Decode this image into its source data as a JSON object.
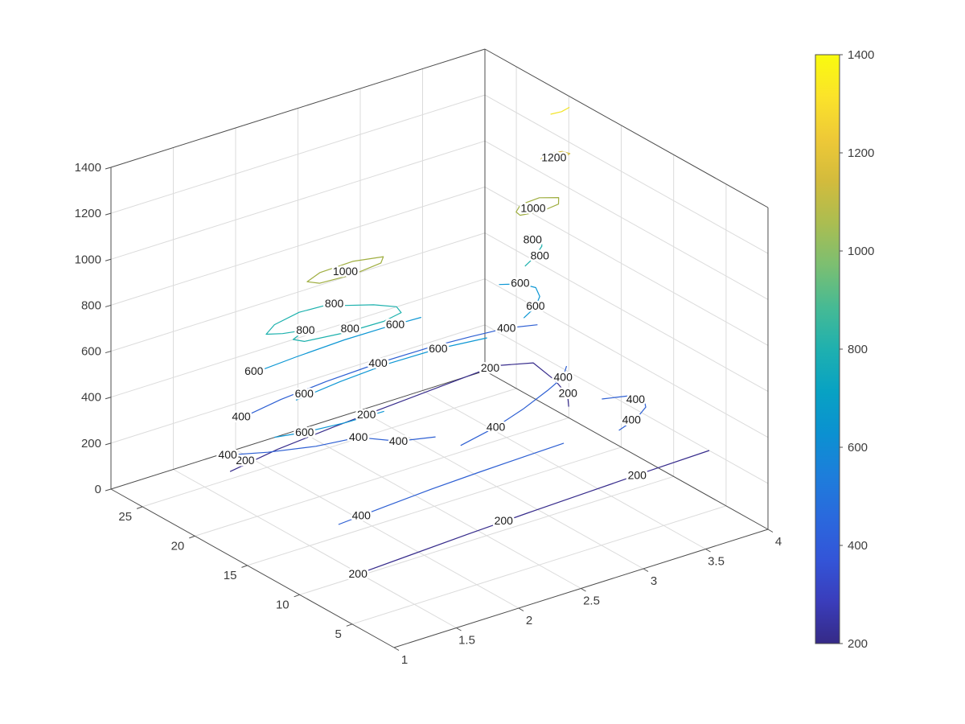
{
  "window": {
    "background": "#ffffff"
  },
  "chart_data": {
    "type": "contour3",
    "title": "",
    "view": "3d-default",
    "xlim": [
      1,
      4
    ],
    "ylim": [
      1,
      28
    ],
    "zlim": [
      0,
      1400
    ],
    "x_ticks": [
      1,
      1.5,
      2,
      2.5,
      3,
      3.5,
      4
    ],
    "y_ticks": [
      5,
      10,
      15,
      20,
      25
    ],
    "z_ticks": [
      0,
      200,
      400,
      600,
      800,
      1000,
      1200,
      1400
    ],
    "levels": [
      200,
      400,
      600,
      800,
      1000,
      1200,
      1400
    ],
    "grid": true,
    "colors": {
      "grid": "#dbdbdb",
      "axis": "#4d4d4d",
      "tick_text": "#3d3d3d",
      "contour_label_text": "#1b1b1b"
    },
    "contours": [
      {
        "level": 200,
        "color": "#372c8c",
        "closed": false,
        "points": [
          [
            1.0,
            5.2
          ],
          [
            1.5,
            5.5
          ],
          [
            2.0,
            5.8
          ],
          [
            2.5,
            6.05
          ],
          [
            3.0,
            6.25
          ],
          [
            3.5,
            6.45
          ],
          [
            4.0,
            6.6
          ]
        ],
        "labels": [
          [
            1.07,
            5.27
          ],
          [
            2.3,
            6.0
          ],
          [
            3.4,
            6.35
          ]
        ]
      },
      {
        "level": 200,
        "color": "#372c8c",
        "closed": false,
        "points": [
          [
            1.35,
            20.8
          ],
          [
            1.8,
            21.6
          ],
          [
            2.3,
            22.1
          ],
          [
            2.8,
            22.5
          ],
          [
            3.3,
            22.9
          ],
          [
            3.68,
            23.2
          ],
          [
            3.9,
            22.2
          ],
          [
            3.85,
            19.5
          ],
          [
            3.78,
            17.5
          ],
          [
            3.68,
            16.2
          ]
        ],
        "labels": [
          [
            1.53,
            21.5
          ],
          [
            2.57,
            22.3
          ],
          [
            3.63,
            23.1
          ],
          [
            3.8,
            17.7
          ]
        ]
      },
      {
        "level": 400,
        "color": "#2d5fd3",
        "closed": false,
        "points": [
          [
            1.0,
            6.3
          ],
          [
            1.4,
            6.65
          ],
          [
            1.8,
            6.95
          ],
          [
            2.2,
            7.15
          ],
          [
            2.6,
            7.3
          ],
          [
            2.9,
            7.4
          ]
        ],
        "labels": [
          [
            1.2,
            6.5
          ]
        ]
      },
      {
        "level": 400,
        "color": "#2d5fd3",
        "closed": false,
        "points": [
          [
            3.3,
            6.9
          ],
          [
            3.5,
            7.6
          ],
          [
            3.65,
            8.5
          ],
          [
            3.72,
            9.5
          ],
          [
            3.67,
            10.3
          ],
          [
            3.5,
            10.9
          ]
        ],
        "labels": [
          [
            3.46,
            7.6
          ],
          [
            3.67,
            9.7
          ]
        ]
      },
      {
        "level": 400,
        "color": "#2d5fd3",
        "closed": false,
        "points": [
          [
            2.35,
            10.7
          ],
          [
            2.7,
            11.5
          ],
          [
            3.0,
            12.5
          ],
          [
            3.3,
            13.7
          ],
          [
            3.5,
            14.6
          ],
          [
            3.62,
            15.7
          ]
        ],
        "labels": [
          [
            2.7,
            11.5
          ],
          [
            3.5,
            14.6
          ]
        ]
      },
      {
        "level": 400,
        "color": "#2d5fd3",
        "closed": false,
        "points": [
          [
            1.02,
            17.9
          ],
          [
            1.3,
            16.6
          ],
          [
            1.6,
            15.6
          ],
          [
            1.9,
            15.1
          ],
          [
            2.07,
            13.3
          ],
          [
            2.3,
            12.5
          ]
        ],
        "labels": [
          [
            1.07,
            17.7
          ],
          [
            1.9,
            15.1
          ],
          [
            2.07,
            13.3
          ]
        ]
      },
      {
        "level": 400,
        "color": "#2d5fd3",
        "closed": false,
        "points": [
          [
            1.45,
            21.2
          ],
          [
            1.85,
            21.9
          ],
          [
            2.25,
            22.3
          ],
          [
            2.68,
            22.5
          ],
          [
            3.1,
            22.45
          ],
          [
            3.4,
            22.2
          ],
          [
            3.66,
            21.9
          ],
          [
            3.85,
            21.2
          ]
        ],
        "labels": [
          [
            1.49,
            21.4
          ],
          [
            2.68,
            22.5
          ],
          [
            3.66,
            21.9
          ]
        ]
      },
      {
        "level": 600,
        "color": "#0d97d4",
        "closed": false,
        "points": [
          [
            1.5,
            20.7
          ],
          [
            1.9,
            21.0
          ],
          [
            2.3,
            21.2
          ],
          [
            2.65,
            21.15
          ],
          [
            2.9,
            21.0
          ]
        ],
        "labels": [
          [
            1.55,
            20.9
          ],
          [
            2.7,
            21.1
          ]
        ]
      },
      {
        "level": 600,
        "color": "#0d97d4",
        "closed": false,
        "points": [
          [
            1.5,
            16.3
          ],
          [
            1.9,
            16.8
          ],
          [
            2.3,
            17.1
          ],
          [
            2.7,
            17.0
          ],
          [
            3.05,
            16.5
          ]
        ],
        "labels": [
          [
            1.6,
            16.7
          ],
          [
            2.7,
            17.0
          ]
        ]
      },
      {
        "level": 600,
        "color": "#0d97d4",
        "closed": false,
        "points": [
          [
            1.05,
            13.0
          ],
          [
            1.25,
            12.5
          ],
          [
            1.55,
            12.15
          ],
          [
            1.85,
            12.05
          ]
        ],
        "labels": [
          [
            1.25,
            12.5
          ]
        ]
      },
      {
        "level": 600,
        "color": "#0d97d4",
        "closed": false,
        "points": [
          [
            3.42,
            17.4
          ],
          [
            3.58,
            18.2
          ],
          [
            3.7,
            19.2
          ],
          [
            3.76,
            20.3
          ],
          [
            3.72,
            21.2
          ],
          [
            3.6,
            21.9
          ]
        ],
        "labels": [
          [
            3.59,
            18.3
          ],
          [
            3.72,
            21.3
          ]
        ]
      },
      {
        "level": 800,
        "color": "#1cb1ad",
        "closed": true,
        "points": [
          [
            1.77,
            18.6
          ],
          [
            1.62,
            18.0
          ],
          [
            1.66,
            17.4
          ],
          [
            1.95,
            16.95
          ],
          [
            2.25,
            16.85
          ],
          [
            2.42,
            17.2
          ],
          [
            2.45,
            18.0
          ],
          [
            2.35,
            19.0
          ],
          [
            2.2,
            19.9
          ],
          [
            2.16,
            20.55
          ],
          [
            1.9,
            20.75
          ],
          [
            1.66,
            20.25
          ],
          [
            1.53,
            19.5
          ],
          [
            1.62,
            19.0
          ]
        ],
        "labels": [
          [
            2.16,
            20.5
          ],
          [
            1.77,
            18.6
          ],
          [
            2.01,
            17.2
          ]
        ]
      },
      {
        "level": 800,
        "color": "#1cb1ad",
        "closed": false,
        "points": [
          [
            3.48,
            18.0
          ],
          [
            3.62,
            18.7
          ],
          [
            3.75,
            19.6
          ],
          [
            3.83,
            20.6
          ],
          [
            3.78,
            21.4
          ]
        ],
        "labels": [
          [
            3.65,
            18.6
          ],
          [
            3.76,
            20.6
          ]
        ]
      },
      {
        "level": 1000,
        "color": "#9fae40",
        "closed": true,
        "points": [
          [
            1.85,
            18.2
          ],
          [
            2.1,
            18.0
          ],
          [
            2.35,
            18.3
          ],
          [
            2.42,
            18.9
          ],
          [
            2.22,
            19.45
          ],
          [
            1.95,
            19.35
          ],
          [
            1.8,
            18.8
          ]
        ],
        "labels": [
          [
            2.09,
            18.6
          ]
        ]
      },
      {
        "level": 1000,
        "color": "#9fae40",
        "closed": true,
        "points": [
          [
            3.5,
            18.7
          ],
          [
            3.65,
            18.4
          ],
          [
            3.8,
            18.6
          ],
          [
            3.86,
            19.3
          ],
          [
            3.76,
            19.95
          ],
          [
            3.6,
            19.85
          ],
          [
            3.51,
            19.2
          ]
        ],
        "labels": [
          [
            3.63,
            19.0
          ]
        ]
      },
      {
        "level": 1200,
        "color": "#d0ba3c",
        "closed": true,
        "points": [
          [
            3.7,
            18.6
          ],
          [
            3.8,
            18.4
          ],
          [
            3.9,
            18.7
          ],
          [
            3.88,
            19.2
          ],
          [
            3.78,
            19.45
          ],
          [
            3.7,
            19.1
          ]
        ],
        "labels": [
          [
            3.78,
            18.8
          ]
        ]
      },
      {
        "level": 1400,
        "color": "#f2e426",
        "closed": false,
        "points": [
          [
            3.74,
            18.65
          ],
          [
            3.82,
            18.55
          ],
          [
            3.9,
            18.75
          ]
        ],
        "labels": []
      }
    ],
    "colorbar": {
      "min": 200,
      "max": 1400,
      "ticks": [
        200,
        400,
        600,
        800,
        1000,
        1200,
        1400
      ],
      "gradient_bottom_to_top": [
        "#352a87",
        "#3a3dbb",
        "#3355d8",
        "#2a69dd",
        "#1d7edb",
        "#0b91d1",
        "#08a2c3",
        "#1fb0af",
        "#46ba94",
        "#7cbf71",
        "#abbd51",
        "#d3bb3c",
        "#eec937",
        "#fbe32a",
        "#f9fb0e"
      ]
    }
  }
}
